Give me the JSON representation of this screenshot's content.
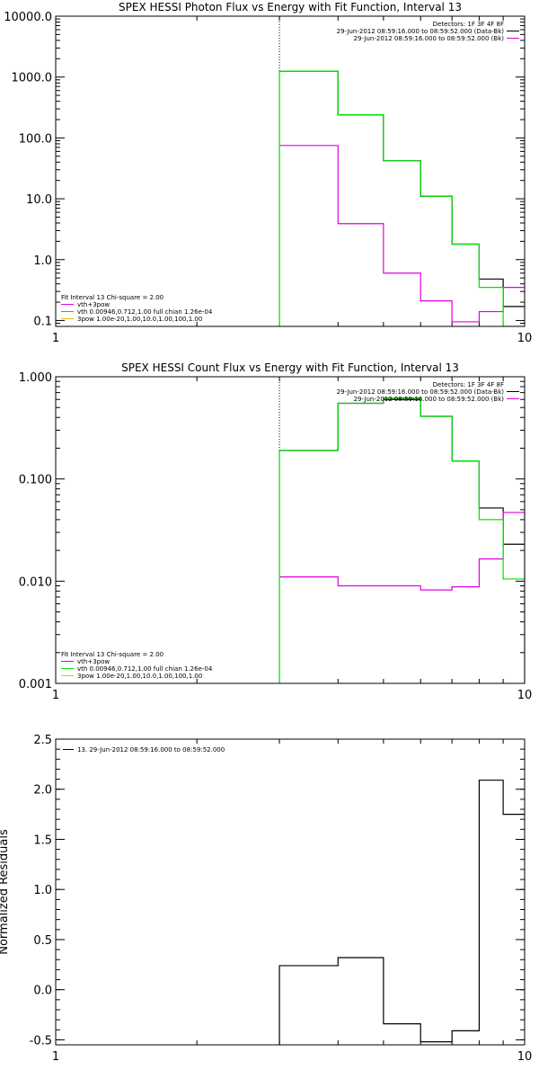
{
  "chart_data": [
    {
      "type": "line",
      "title": "SPEX HESSI Photon Flux vs Energy with Fit Function, Interval 13",
      "xlabel": "",
      "ylabel": "",
      "xscale": "log",
      "yscale": "log",
      "xlim": [
        1,
        10
      ],
      "ylim": [
        0.08,
        10000
      ],
      "x_ticks": [
        1,
        10
      ],
      "x_tick_labels": [
        "1",
        "10"
      ],
      "y_ticks": [
        0.1,
        1,
        10,
        100,
        1000,
        10000
      ],
      "y_tick_labels": [
        "0.1",
        "1.0",
        "10.0",
        "100.0",
        "1000.0",
        "10000.0"
      ],
      "marker_line_x": 3,
      "legend_top_right": [
        {
          "text": "Detectors: 1F 3F 4F 8F",
          "color": null
        },
        {
          "text": "29-Jun-2012 08:59:16.000 to 08:59:52.000 (Data-Bk)",
          "color": "#000000"
        },
        {
          "text": "29-Jun-2012 08:59:16.000 to 08:59:52.000 (Bk)",
          "color": "#e000e0"
        }
      ],
      "legend_bottom_left": [
        {
          "text": "Fit Interval 13    Chi-square = 2.00",
          "color": null
        },
        {
          "text": "vth+3pow",
          "color": "#e000e0"
        },
        {
          "text": "vth 0.00946,0.712,1.00   full chian 1.26e-04",
          "color": "#00e000"
        },
        {
          "text": "3pow 1.00e-20,1.00,10.0,1.00,100,1.00",
          "color": "#e8c000"
        }
      ],
      "series": [
        {
          "color": "#000000",
          "x": [
            3,
            4,
            4,
            5,
            5,
            6,
            6,
            7,
            7,
            8,
            8,
            9,
            9,
            10
          ],
          "y": [
            1250,
            1250,
            240,
            240,
            42,
            42,
            11,
            11,
            1.8,
            1.8,
            0.48,
            0.48,
            0.17,
            0.17
          ]
        },
        {
          "color": "#e000e0",
          "x": [
            3,
            4,
            4,
            5,
            5,
            6,
            6,
            7,
            7,
            8,
            8,
            9,
            9,
            10
          ],
          "y": [
            75,
            75,
            3.9,
            3.9,
            0.6,
            0.6,
            0.21,
            0.21,
            0.095,
            0.095,
            0.14,
            0.14,
            0.35,
            0.35
          ]
        },
        {
          "color": "#00e000",
          "x": [
            3,
            3,
            4,
            4,
            5,
            5,
            6,
            6,
            7,
            7,
            8,
            8,
            9,
            9,
            10
          ],
          "y": [
            0.08,
            1250,
            1250,
            240,
            240,
            42,
            42,
            11,
            11,
            1.8,
            1.8,
            0.35,
            0.35,
            0.08,
            0.08
          ]
        }
      ]
    },
    {
      "type": "line",
      "title": "SPEX HESSI Count Flux vs Energy with Fit Function, Interval 13",
      "xlabel": "",
      "ylabel": "",
      "xscale": "log",
      "yscale": "log",
      "xlim": [
        1,
        10
      ],
      "ylim": [
        0.001,
        1
      ],
      "x_ticks": [
        1,
        10
      ],
      "x_tick_labels": [
        "1",
        "10"
      ],
      "y_ticks": [
        0.001,
        0.01,
        0.1,
        1
      ],
      "y_tick_labels": [
        "0.001",
        "0.010",
        "0.100",
        "1.000"
      ],
      "marker_line_x": 3,
      "legend_top_right": [
        {
          "text": "Detectors: 1F 3F 4F 8F",
          "color": null
        },
        {
          "text": "29-Jun-2012 08:59:16.000 to 08:59:52.000 (Data-Bk)",
          "color": "#000000"
        },
        {
          "text": "29-Jun-2012 08:59:16.000 to 08:59:52.000 (Bk)",
          "color": "#e000e0"
        }
      ],
      "legend_bottom_left": [
        {
          "text": "Fit Interval 13    Chi-square = 2.00",
          "color": null
        },
        {
          "text": "vth+3pow",
          "color": "#e000e0"
        },
        {
          "text": "vth 0.00946,0.712,1.00   full chian 1.26e-04",
          "color": "#00e000"
        },
        {
          "text": "3pow 1.00e-20,1.00,10.0,1.00,100,1.00",
          "color": "#e8c000"
        }
      ],
      "series": [
        {
          "color": "#000000",
          "x": [
            3,
            4,
            4,
            5,
            5,
            6,
            6,
            7,
            7,
            8,
            8,
            9,
            9,
            10
          ],
          "y": [
            0.19,
            0.19,
            0.55,
            0.55,
            0.6,
            0.6,
            0.41,
            0.41,
            0.15,
            0.15,
            0.052,
            0.052,
            0.023,
            0.023
          ]
        },
        {
          "color": "#e000e0",
          "x": [
            3,
            4,
            4,
            5,
            5,
            6,
            6,
            7,
            7,
            8,
            8,
            9,
            9,
            10,
            10
          ],
          "y": [
            0.011,
            0.011,
            0.009,
            0.009,
            0.009,
            0.009,
            0.0082,
            0.0082,
            0.0088,
            0.0088,
            0.0165,
            0.0165,
            0.047,
            0.047,
            0.001
          ]
        },
        {
          "color": "#00e000",
          "x": [
            3,
            3,
            4,
            4,
            5,
            5,
            6,
            6,
            7,
            7,
            8,
            8,
            9,
            9,
            10
          ],
          "y": [
            0.001,
            0.19,
            0.19,
            0.55,
            0.55,
            0.62,
            0.62,
            0.41,
            0.41,
            0.15,
            0.15,
            0.04,
            0.04,
            0.0105,
            0.0105
          ]
        }
      ]
    },
    {
      "type": "line",
      "title": "",
      "xlabel": "",
      "ylabel": "Normalized Residuals",
      "xscale": "log",
      "yscale": "linear",
      "xlim": [
        1,
        10
      ],
      "ylim": [
        -0.55,
        2.5
      ],
      "x_ticks": [
        1,
        10
      ],
      "x_tick_labels": [
        "1",
        "10"
      ],
      "y_ticks": [
        -0.5,
        0.0,
        0.5,
        1.0,
        1.5,
        2.0,
        2.5
      ],
      "y_tick_labels": [
        "-0.5",
        "0.0",
        "0.5",
        "1.0",
        "1.5",
        "2.0",
        "2.5"
      ],
      "legend_top_left": [
        {
          "text": "13. 29-Jun-2012 08:59:16.000 to 08:59:52.000",
          "color": "#000000"
        }
      ],
      "series": [
        {
          "color": "#000000",
          "x": [
            3,
            3,
            4,
            4,
            5,
            5,
            6,
            6,
            7,
            7,
            8,
            8,
            9,
            9,
            10
          ],
          "y": [
            -0.55,
            0.24,
            0.24,
            0.32,
            0.32,
            -0.34,
            -0.34,
            -0.52,
            -0.52,
            -0.41,
            -0.41,
            2.09,
            2.09,
            1.75,
            1.75
          ]
        }
      ]
    }
  ]
}
